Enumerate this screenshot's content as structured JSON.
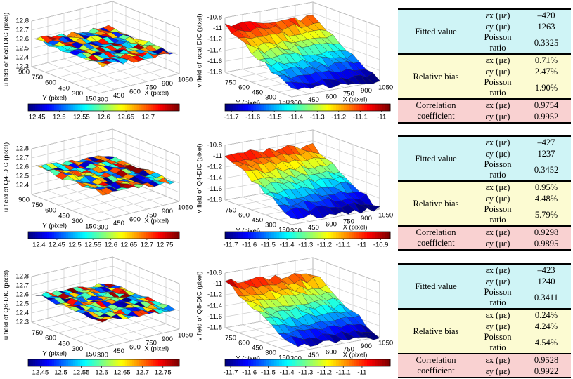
{
  "rows": [
    {
      "u_plot": {
        "zlabel": "u field of local DIC (pixel)",
        "xlabel": "X (pixel)",
        "ylabel": "Y (pixel)",
        "xlim": [
          300,
          1050
        ],
        "ylim": [
          150,
          900
        ],
        "zlim": [
          12.3,
          12.8
        ],
        "xticks": [
          300,
          450,
          600,
          750,
          900,
          1050
        ],
        "yticks": [
          900,
          750,
          600,
          450,
          300,
          150
        ],
        "zticks": [
          12.3,
          12.4,
          12.5,
          12.6,
          12.7,
          12.8
        ],
        "clim": [
          12.43,
          12.77
        ],
        "cticks": [
          12.45,
          12.5,
          12.55,
          12.6,
          12.65,
          12.7
        ]
      },
      "v_plot": {
        "zlabel": "v field of local DIC (pixel)",
        "xlabel": "X (pixel)",
        "ylabel": "Y (pixel)",
        "xlim": [
          300,
          1050
        ],
        "ylim": [
          150,
          900
        ],
        "zlim": [
          -11.8,
          -10.8
        ],
        "xticks": [
          300,
          450,
          600,
          750,
          900,
          1050
        ],
        "yticks": [
          750,
          600,
          450,
          300,
          150
        ],
        "zticks": [
          -10.8,
          -11,
          -11.2,
          -11.4,
          -11.6,
          -11.8
        ],
        "clim": [
          -11.73,
          -10.96
        ],
        "cticks": [
          -11.7,
          -11.6,
          -11.5,
          -11.4,
          -11.3,
          -11.2,
          -11.1,
          -11
        ]
      },
      "table": {
        "groups": [
          {
            "label": "Fitted value",
            "rows": [
              [
                "εx (με)",
                "–420"
              ],
              [
                "εy (με)",
                "1263"
              ],
              [
                "Poisson ratio",
                "0.3325"
              ]
            ]
          },
          {
            "label": "Relative bias",
            "rows": [
              [
                "εx (με)",
                "0.71%"
              ],
              [
                "εy (με)",
                "2.47%"
              ],
              [
                "Poisson ratio",
                "1.90%"
              ]
            ]
          },
          {
            "label": "Correlation coefficient",
            "rows": [
              [
                "εx (με)",
                "0.9754"
              ],
              [
                "εy (με)",
                "0.9952"
              ]
            ]
          }
        ]
      }
    },
    {
      "u_plot": {
        "zlabel": "u field of Q4-DIC (pixel)",
        "xlabel": "X (pixel)",
        "ylabel": "Y (pixel)",
        "xlim": [
          300,
          1050
        ],
        "ylim": [
          150,
          900
        ],
        "zlim": [
          12.3,
          12.8
        ],
        "xticks": [
          300,
          450,
          600,
          750,
          900,
          1050
        ],
        "yticks": [
          900,
          750,
          600,
          450,
          300,
          150
        ],
        "zticks": [
          12.4,
          12.5,
          12.6,
          12.7,
          12.8
        ],
        "clim": [
          12.37,
          12.79
        ],
        "cticks": [
          12.4,
          12.45,
          12.5,
          12.55,
          12.6,
          12.65,
          12.7,
          12.75
        ]
      },
      "v_plot": {
        "zlabel": "v field of Q4-DIC (pixel)",
        "xlabel": "X (pixel)",
        "ylabel": "Y (pixel)",
        "xlim": [
          300,
          1050
        ],
        "ylim": [
          150,
          900
        ],
        "zlim": [
          -11.8,
          -10.8
        ],
        "xticks": [
          300,
          450,
          600,
          750,
          900,
          1050
        ],
        "yticks": [
          750,
          600,
          450,
          300,
          150
        ],
        "zticks": [
          -10.8,
          -11,
          -11.2,
          -11.4,
          -11.6,
          -11.8
        ],
        "clim": [
          -11.73,
          -10.85
        ],
        "cticks": [
          -11.7,
          -11.6,
          -11.5,
          -11.4,
          -11.3,
          -11.2,
          -11.1,
          -11,
          -10.9
        ]
      },
      "table": {
        "groups": [
          {
            "label": "Fitted value",
            "rows": [
              [
                "εx (με)",
                "–427"
              ],
              [
                "εy (με)",
                "1237"
              ],
              [
                "Poisson ratio",
                "0.3452"
              ]
            ]
          },
          {
            "label": "Relative bias",
            "rows": [
              [
                "εx (με)",
                "0.95%"
              ],
              [
                "εy (με)",
                "4.48%"
              ],
              [
                "Poisson ratio",
                "5.79%"
              ]
            ]
          },
          {
            "label": "Correlation coefficient",
            "rows": [
              [
                "εx (με)",
                "0.9298"
              ],
              [
                "εy (με)",
                "0.9895"
              ]
            ]
          }
        ]
      }
    },
    {
      "u_plot": {
        "zlabel": "u field of Q8-DIC (pixel)",
        "xlabel": "X (pixel)",
        "ylabel": "Y (pixel)",
        "xlim": [
          300,
          1050
        ],
        "ylim": [
          150,
          900
        ],
        "zlim": [
          12.3,
          12.8
        ],
        "xticks": [
          300,
          450,
          600,
          750,
          900,
          1050
        ],
        "yticks": [
          750,
          600,
          450,
          300,
          150
        ],
        "zticks": [
          12.3,
          12.4,
          12.5,
          12.6,
          12.7,
          12.8
        ],
        "clim": [
          12.42,
          12.79
        ],
        "cticks": [
          12.45,
          12.5,
          12.55,
          12.6,
          12.65,
          12.7,
          12.75
        ]
      },
      "v_plot": {
        "zlabel": "v field of Q8-DIC (pixel)",
        "xlabel": "X (pixel)",
        "ylabel": "Y (pixel)",
        "xlim": [
          300,
          1050
        ],
        "ylim": [
          150,
          900
        ],
        "zlim": [
          -11.8,
          -10.8
        ],
        "xticks": [
          300,
          450,
          600,
          750,
          900,
          1050
        ],
        "yticks": [
          750,
          600,
          450,
          300,
          150
        ],
        "zticks": [
          -10.8,
          -11,
          -11.2,
          -11.4,
          -11.6,
          -11.8
        ],
        "clim": [
          -11.73,
          -10.85
        ],
        "cticks": [
          -11.7,
          -11.6,
          -11.5,
          -11.4,
          -11.3,
          -11.2,
          -11.1,
          -11
        ]
      },
      "table": {
        "groups": [
          {
            "label": "Fitted value",
            "rows": [
              [
                "εx (με)",
                "–423"
              ],
              [
                "εy (με)",
                "1240"
              ],
              [
                "Poisson ratio",
                "0.3411"
              ]
            ]
          },
          {
            "label": "Relative bias",
            "rows": [
              [
                "εx (με)",
                "0.24%"
              ],
              [
                "εy (με)",
                "4.24%"
              ],
              [
                "Poisson ratio",
                "4.54%"
              ]
            ]
          },
          {
            "label": "Correlation coefficient",
            "rows": [
              [
                "εx (με)",
                "0.9528"
              ],
              [
                "εy (με)",
                "0.9922"
              ]
            ]
          }
        ]
      }
    }
  ]
}
